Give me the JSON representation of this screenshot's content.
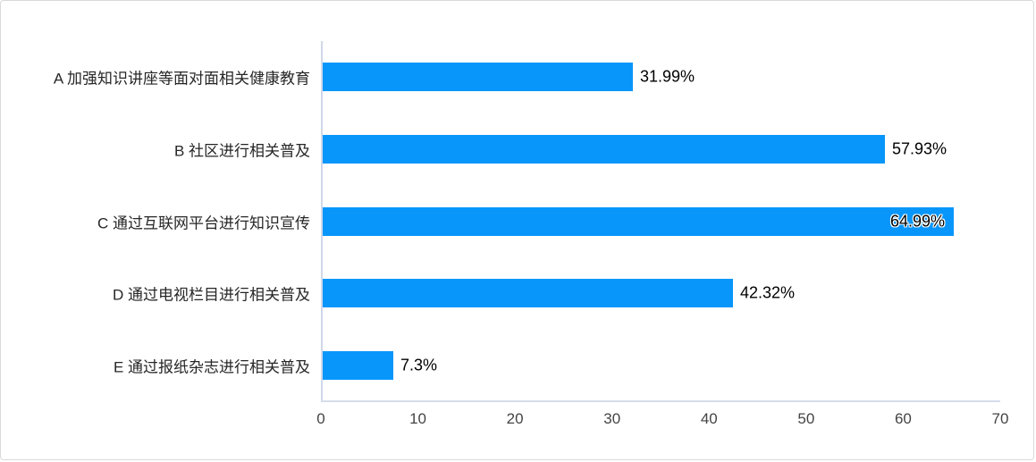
{
  "chart_data": {
    "type": "bar",
    "orientation": "horizontal",
    "title": "",
    "xlabel": "",
    "ylabel": "",
    "categories": [
      "A 加强知识讲座等面对面相关健康教育",
      "B 社区进行相关普及",
      "C 通过互联网平台进行知识宣传",
      "D 通过电视栏目进行相关普及",
      "E 通过报纸杂志进行相关普及"
    ],
    "values": [
      31.99,
      57.93,
      64.99,
      42.32,
      7.3
    ],
    "value_labels": [
      "31.99%",
      "57.93%",
      "64.99%",
      "42.32%",
      "7.3%"
    ],
    "value_label_placement": [
      "outside",
      "outside",
      "inside",
      "outside",
      "outside"
    ],
    "x_ticks": [
      "0",
      "10",
      "20",
      "30",
      "40",
      "50",
      "60",
      "70"
    ],
    "xlim": [
      0,
      70
    ],
    "grid": false,
    "legend": false,
    "bar_color": "#0996fb",
    "axis_line_color": "#cfd8e8",
    "tick_label_color": "#444444",
    "category_label_color": "#262626",
    "frame_border_color": "#d9d9d9"
  }
}
